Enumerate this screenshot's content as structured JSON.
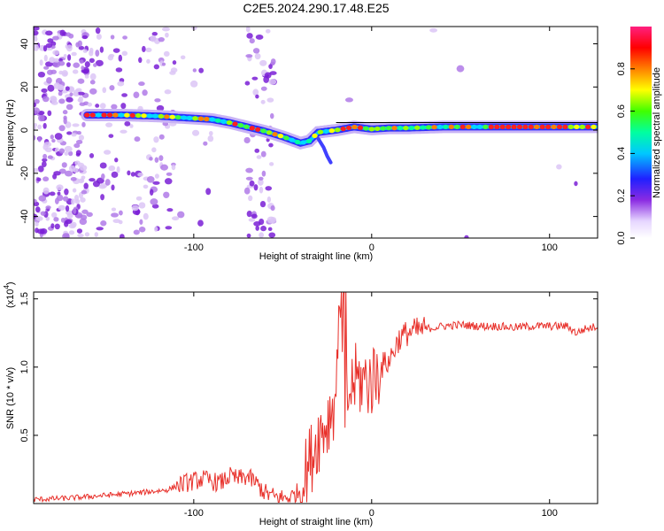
{
  "page_title": "C2E5.2024.290.17.48.E25",
  "chart_data": [
    {
      "type": "heatmap",
      "xlabel": "Height of straight line (km)",
      "ylabel": "Frequency (Hz)",
      "xlim": [
        -190,
        127
      ],
      "ylim": [
        -50,
        48
      ],
      "xticks": [
        -100,
        0,
        100
      ],
      "yticks": [
        -40,
        -20,
        0,
        20,
        40
      ],
      "colorbar": {
        "label": "Normalized spectral amplitude",
        "range": [
          0,
          1
        ],
        "ticks": [
          0.0,
          0.2,
          0.4,
          0.6,
          0.8
        ]
      },
      "dominant_track": {
        "x": [
          -160,
          -140,
          -120,
          -110,
          -100,
          -90,
          -80,
          -70,
          -60,
          -50,
          -45,
          -40,
          -35,
          -30,
          -20,
          -10,
          0,
          10,
          20,
          40,
          60,
          80,
          100,
          127
        ],
        "y": [
          7,
          7,
          6.5,
          6,
          5.5,
          5,
          3.5,
          1.5,
          -0.5,
          -3,
          -4.5,
          -6,
          -5,
          -1,
          0,
          1.5,
          0.5,
          1,
          1,
          1.5,
          1.5,
          1.5,
          1.5,
          1.5
        ]
      }
    },
    {
      "type": "line",
      "xlabel": "Height of straight line (km)",
      "ylabel": "SNR (10 * v/v)",
      "scale_label": "(x10",
      "scale_exponent": "4",
      "scale_close": ")",
      "xlim": [
        -190,
        127
      ],
      "ylim": [
        0,
        1.55
      ],
      "xticks": [
        -100,
        0,
        100
      ],
      "yticks": [
        0.5,
        1.0,
        1.5
      ],
      "color": "#e8302a",
      "series": [
        {
          "x": [
            -190,
            -170,
            -150,
            -130,
            -115,
            -105,
            -95,
            -85,
            -80,
            -75,
            -70,
            -65,
            -60,
            -55,
            -50,
            -45,
            -40,
            -35,
            -30,
            -25,
            -20,
            -17,
            -15,
            -10,
            -5,
            0,
            5,
            10,
            15,
            20,
            30,
            40,
            50,
            60,
            70,
            80,
            90,
            100,
            110,
            115,
            120,
            127
          ],
          "y": [
            0.03,
            0.04,
            0.06,
            0.08,
            0.1,
            0.15,
            0.18,
            0.15,
            0.2,
            0.18,
            0.2,
            0.15,
            0.08,
            0.05,
            0.04,
            0.05,
            0.1,
            0.3,
            0.5,
            0.6,
            0.8,
            1.55,
            0.7,
            0.9,
            0.9,
            0.9,
            1.0,
            1.05,
            1.2,
            1.25,
            1.28,
            1.3,
            1.31,
            1.3,
            1.3,
            1.29,
            1.3,
            1.3,
            1.3,
            1.25,
            1.28,
            1.3
          ]
        }
      ]
    }
  ]
}
